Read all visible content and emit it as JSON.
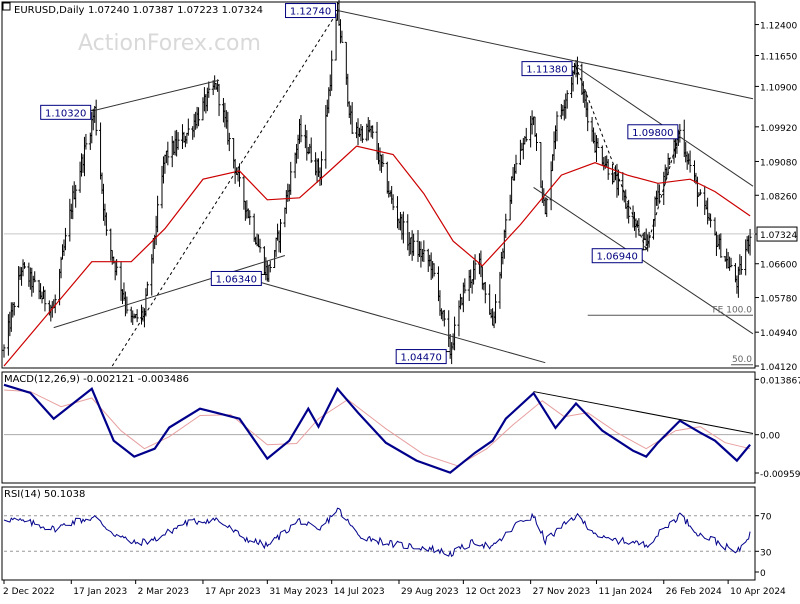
{
  "header": {
    "symbol": "EURUSD,Daily",
    "ohlc": "1.07240 1.07387 1.07223 1.07324"
  },
  "watermark": "ActionForex.com",
  "colors": {
    "bars": "#000000",
    "ma": "#cc0000",
    "macd": "#00008b",
    "signal": "#e8a0a0",
    "rsi": "#00008b",
    "channel": "#333333",
    "label_border": "#000080",
    "label_bg": "#ffffff",
    "current_price_bg": "#ffffff"
  },
  "chart_data": [
    {
      "type": "candlestick",
      "panel": "price",
      "title": "EURUSD,Daily",
      "ohlc_last": [
        1.0724,
        1.07387,
        1.07223,
        1.07324
      ],
      "current_price": "1.07324",
      "ylim": [
        1.0412,
        1.1285
      ],
      "y_ticks": [
        "1.12400",
        "1.11650",
        "1.10900",
        "1.09920",
        "1.09080",
        "1.08260",
        "1.07324",
        "1.06600",
        "1.05780",
        "1.04940",
        "1.04120"
      ],
      "x_ticks": [
        "2 Dec 2022",
        "17 Jan 2023",
        "2 Mar 2023",
        "17 Apr 2023",
        "31 May 2023",
        "14 Jul 2023",
        "29 Aug 2023",
        "12 Oct 2023",
        "27 Nov 2023",
        "11 Jan 2024",
        "26 Feb 2024",
        "10 Apr 2024"
      ],
      "swing_labels": [
        {
          "date": "2023-02-02",
          "value": 1.1032,
          "text": "1.10320"
        },
        {
          "date": "2023-07-18",
          "value": 1.1274,
          "text": "1.12740"
        },
        {
          "date": "2023-05-31",
          "value": 1.0634,
          "text": "1.06340"
        },
        {
          "date": "2023-10-03",
          "value": 1.0447,
          "text": "1.04470"
        },
        {
          "date": "2023-12-28",
          "value": 1.1138,
          "text": "1.11380"
        },
        {
          "date": "2024-02-14",
          "value": 1.0694,
          "text": "1.06940"
        },
        {
          "date": "2024-03-08",
          "value": 1.098,
          "text": "1.09800"
        }
      ],
      "annotations": [
        "FE 100.0",
        "50.0"
      ],
      "path": [
        [
          "2022-12-02",
          1.045
        ],
        [
          "2022-12-14",
          1.065
        ],
        [
          "2022-12-28",
          1.058
        ],
        [
          "2023-01-05",
          1.055
        ],
        [
          "2023-01-18",
          1.082
        ],
        [
          "2023-02-02",
          1.1032
        ],
        [
          "2023-02-10",
          1.073
        ],
        [
          "2023-02-27",
          1.052
        ],
        [
          "2023-03-08",
          1.054
        ],
        [
          "2023-03-22",
          1.092
        ],
        [
          "2023-04-05",
          1.097
        ],
        [
          "2023-04-26",
          1.1095
        ],
        [
          "2023-05-12",
          1.085
        ],
        [
          "2023-05-31",
          1.0634
        ],
        [
          "2023-06-08",
          1.073
        ],
        [
          "2023-06-22",
          1.098
        ],
        [
          "2023-07-06",
          1.088
        ],
        [
          "2023-07-18",
          1.1274
        ],
        [
          "2023-07-28",
          1.098
        ],
        [
          "2023-08-10",
          1.098
        ],
        [
          "2023-08-25",
          1.08
        ],
        [
          "2023-09-05",
          1.071
        ],
        [
          "2023-09-20",
          1.066
        ],
        [
          "2023-10-03",
          1.0447
        ],
        [
          "2023-10-12",
          1.0595
        ],
        [
          "2023-10-23",
          1.0662
        ],
        [
          "2023-11-01",
          1.0515
        ],
        [
          "2023-11-15",
          1.088
        ],
        [
          "2023-11-29",
          1.1015
        ],
        [
          "2023-12-07",
          1.0775
        ],
        [
          "2023-12-14",
          1.0995
        ],
        [
          "2023-12-28",
          1.1138
        ],
        [
          "2024-01-10",
          1.095
        ],
        [
          "2024-01-22",
          1.0875
        ],
        [
          "2024-02-14",
          1.0694
        ],
        [
          "2024-02-22",
          1.0835
        ],
        [
          "2024-03-08",
          1.098
        ],
        [
          "2024-03-22",
          1.0815
        ],
        [
          "2024-04-01",
          1.0725
        ],
        [
          "2024-04-16",
          1.0615
        ],
        [
          "2024-04-25",
          1.0732
        ]
      ],
      "moving_average": [
        [
          "2022-12-02",
          1.0412
        ],
        [
          "2023-01-05",
          1.0555
        ],
        [
          "2023-01-31",
          1.0665
        ],
        [
          "2023-02-27",
          1.0665
        ],
        [
          "2023-03-22",
          1.0745
        ],
        [
          "2023-04-17",
          1.0865
        ],
        [
          "2023-05-12",
          1.0885
        ],
        [
          "2023-05-31",
          1.0815
        ],
        [
          "2023-06-22",
          1.082
        ],
        [
          "2023-07-11",
          1.088
        ],
        [
          "2023-07-31",
          1.0945
        ],
        [
          "2023-08-25",
          1.0925
        ],
        [
          "2023-09-15",
          1.083
        ],
        [
          "2023-10-05",
          1.0715
        ],
        [
          "2023-10-25",
          1.0655
        ],
        [
          "2023-11-20",
          1.0755
        ],
        [
          "2023-12-18",
          1.0875
        ],
        [
          "2024-01-10",
          1.0905
        ],
        [
          "2024-02-01",
          1.0875
        ],
        [
          "2024-02-22",
          1.0855
        ],
        [
          "2024-03-15",
          1.0865
        ],
        [
          "2024-04-01",
          1.0835
        ],
        [
          "2024-04-25",
          1.0776
        ]
      ],
      "trendlines": [
        {
          "name": "upper-left",
          "from": [
            "2023-02-02",
            1.1032
          ],
          "to": [
            "2023-04-28",
            1.1105
          ]
        },
        {
          "name": "lower-left",
          "from": [
            "2023-01-05",
            1.0505
          ],
          "to": [
            "2023-06-12",
            1.068
          ]
        },
        {
          "name": "dotted-uptrend",
          "from": [
            "2023-02-14",
            1.0412
          ],
          "to": [
            "2023-07-19",
            1.1277
          ]
        },
        {
          "name": "channel-top",
          "from": [
            "2023-07-18",
            1.1274
          ],
          "to": [
            "2024-04-27",
            1.106
          ]
        },
        {
          "name": "channel-bottom",
          "from": [
            "2023-05-26",
            1.0615
          ],
          "to": [
            "2023-12-07",
            1.042
          ]
        },
        {
          "name": "right-upper",
          "from": [
            "2023-12-28",
            1.1138
          ],
          "to": [
            "2024-04-27",
            1.0848
          ]
        },
        {
          "name": "right-lower",
          "from": [
            "2023-11-29",
            1.0845
          ],
          "to": [
            "2024-04-27",
            1.049
          ]
        },
        {
          "name": "dotted-low",
          "from": [
            "2023-12-28",
            1.1138
          ],
          "to": [
            "2024-02-14",
            1.0694
          ]
        },
        {
          "name": "dotted-high",
          "from": [
            "2024-02-14",
            1.0694
          ],
          "to": [
            "2024-03-08",
            1.098
          ]
        }
      ],
      "level_lines": [
        {
          "label": "FE 100.0",
          "value": 1.0535,
          "from": "2024-01-05"
        },
        {
          "label": "50.0",
          "value": 1.0415,
          "from": "2024-04-12"
        }
      ]
    },
    {
      "type": "line",
      "panel": "macd",
      "title": "MACD(12,26,9) -0.002121 -0.003486",
      "ylim": [
        -0.0116,
        0.0152
      ],
      "y_ticks": [
        "0.013867",
        "0.00",
        "-0.009599"
      ],
      "series": [
        {
          "values": [
            [
              "2022-12-02",
              0.0125
            ],
            [
              "2022-12-20",
              0.0105
            ],
            [
              "2023-01-05",
              0.004
            ],
            [
              "2023-01-31",
              0.0115
            ],
            [
              "2023-02-15",
              -0.0015
            ],
            [
              "2023-03-01",
              -0.0055
            ],
            [
              "2023-03-15",
              -0.0035
            ],
            [
              "2023-03-25",
              0.0018
            ],
            [
              "2023-04-15",
              0.0065
            ],
            [
              "2023-04-26",
              0.0055
            ],
            [
              "2023-05-12",
              0.004
            ],
            [
              "2023-05-31",
              -0.006
            ],
            [
              "2023-06-15",
              -0.0015
            ],
            [
              "2023-06-28",
              0.0065
            ],
            [
              "2023-07-05",
              0.002
            ],
            [
              "2023-07-18",
              0.0115
            ],
            [
              "2023-08-01",
              0.0055
            ],
            [
              "2023-08-20",
              -0.002
            ],
            [
              "2023-09-10",
              -0.0065
            ],
            [
              "2023-10-03",
              -0.0095
            ],
            [
              "2023-10-20",
              -0.0045
            ],
            [
              "2023-11-01",
              -0.0015
            ],
            [
              "2023-11-10",
              0.004
            ],
            [
              "2023-11-29",
              0.0104
            ],
            [
              "2023-12-14",
              0.0017
            ],
            [
              "2023-12-28",
              0.0078
            ],
            [
              "2024-01-15",
              0.001
            ],
            [
              "2024-02-05",
              -0.004
            ],
            [
              "2024-02-14",
              -0.0055
            ],
            [
              "2024-02-22",
              -0.002
            ],
            [
              "2024-03-08",
              0.0035
            ],
            [
              "2024-03-22",
              0.0005
            ],
            [
              "2024-04-01",
              -0.0015
            ],
            [
              "2024-04-16",
              -0.0065
            ],
            [
              "2024-04-25",
              -0.0025
            ]
          ]
        },
        {
          "values": [
            [
              "2022-12-02",
              0.0112
            ],
            [
              "2022-12-20",
              0.0108
            ],
            [
              "2023-01-10",
              0.007
            ],
            [
              "2023-01-31",
              0.0092
            ],
            [
              "2023-02-20",
              0.001
            ],
            [
              "2023-03-08",
              -0.0035
            ],
            [
              "2023-03-25",
              -0.0005
            ],
            [
              "2023-04-15",
              0.0048
            ],
            [
              "2023-05-06",
              0.005
            ],
            [
              "2023-05-31",
              -0.0025
            ],
            [
              "2023-06-20",
              -0.0022
            ],
            [
              "2023-07-05",
              0.004
            ],
            [
              "2023-07-25",
              0.0088
            ],
            [
              "2023-08-20",
              0.0015
            ],
            [
              "2023-09-15",
              -0.005
            ],
            [
              "2023-10-08",
              -0.0078
            ],
            [
              "2023-10-28",
              -0.0035
            ],
            [
              "2023-11-15",
              0.0025
            ],
            [
              "2023-12-05",
              0.0085
            ],
            [
              "2023-12-20",
              0.0045
            ],
            [
              "2024-01-05",
              0.0055
            ],
            [
              "2024-01-25",
              0.0005
            ],
            [
              "2024-02-14",
              -0.0035
            ],
            [
              "2024-03-05",
              0.001
            ],
            [
              "2024-03-22",
              0.002
            ],
            [
              "2024-04-08",
              -0.002
            ],
            [
              "2024-04-25",
              -0.0035
            ]
          ]
        }
      ],
      "trendline": {
        "from": [
          "2023-11-29",
          0.0108
        ],
        "to": [
          "2024-04-27",
          0.0003
        ]
      },
      "zero_line": 0
    },
    {
      "type": "line",
      "panel": "rsi",
      "title": "RSI(14) 50.1038",
      "ylim": [
        0,
        100
      ],
      "y_ticks": [
        "70",
        "30",
        "0"
      ],
      "levels": [
        70,
        30
      ],
      "series": [
        {
          "values": [
            [
              "2022-12-02",
              67
            ],
            [
              "2022-12-20",
              62
            ],
            [
              "2023-01-05",
              55
            ],
            [
              "2023-01-20",
              64
            ],
            [
              "2023-02-02",
              68
            ],
            [
              "2023-02-15",
              50
            ],
            [
              "2023-03-01",
              39
            ],
            [
              "2023-03-15",
              43
            ],
            [
              "2023-04-05",
              62
            ],
            [
              "2023-04-26",
              66
            ],
            [
              "2023-05-15",
              45
            ],
            [
              "2023-05-31",
              36
            ],
            [
              "2023-06-22",
              65
            ],
            [
              "2023-07-05",
              52
            ],
            [
              "2023-07-18",
              78
            ],
            [
              "2023-08-01",
              48
            ],
            [
              "2023-08-25",
              38
            ],
            [
              "2023-09-20",
              33
            ],
            [
              "2023-10-03",
              27
            ],
            [
              "2023-10-20",
              41
            ],
            [
              "2023-11-01",
              34
            ],
            [
              "2023-11-20",
              64
            ],
            [
              "2023-11-29",
              69
            ],
            [
              "2023-12-07",
              42
            ],
            [
              "2023-12-28",
              70
            ],
            [
              "2024-01-15",
              44
            ],
            [
              "2024-02-05",
              40
            ],
            [
              "2024-02-14",
              37
            ],
            [
              "2024-03-08",
              71
            ],
            [
              "2024-03-22",
              48
            ],
            [
              "2024-04-01",
              42
            ],
            [
              "2024-04-16",
              28
            ],
            [
              "2024-04-25",
              50
            ]
          ]
        }
      ]
    }
  ]
}
